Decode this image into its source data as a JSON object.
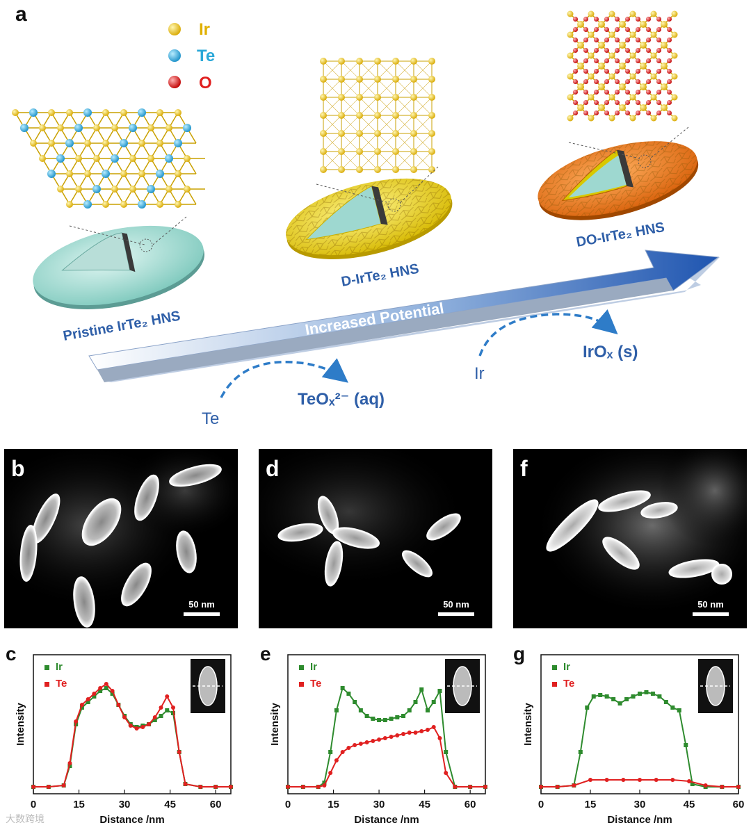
{
  "panel_a": {
    "letter": "a",
    "legend": [
      {
        "label": "Ir",
        "color": "#f0c419"
      },
      {
        "label": "Te",
        "color": "#2aa8d8"
      },
      {
        "label": "O",
        "color": "#e02020"
      }
    ],
    "stages": {
      "pristine": "Pristine IrTe₂ HNS",
      "d": "D-IrTe₂ HNS",
      "do": "DO-IrTe₂ HNS"
    },
    "arrow_label": "Increased Potential",
    "reaction_te_from": "Te",
    "reaction_te_to": "TeOₓ²⁻ (aq)",
    "reaction_ir_from": "Ir",
    "reaction_ir_to": "IrOₓ (s)",
    "label_color": "#2f5fa8",
    "arrow_color": "#2b5cb0"
  },
  "em_panels": [
    {
      "letter": "b",
      "scale": "50 nm"
    },
    {
      "letter": "d",
      "scale": "50 nm"
    },
    {
      "letter": "f",
      "scale": "50 nm"
    }
  ],
  "plots": [
    {
      "letter": "c"
    },
    {
      "letter": "e"
    },
    {
      "letter": "g"
    }
  ],
  "chart_data": [
    {
      "type": "line",
      "panel": "c",
      "xlabel": "Distance /nm",
      "ylabel": "Intensity",
      "xlim": [
        0,
        65
      ],
      "xticks": [
        0,
        15,
        30,
        45,
        60
      ],
      "ylim": [
        0,
        1
      ],
      "series": [
        {
          "name": "Ir",
          "color": "#2e8b2e",
          "x": [
            0,
            5,
            10,
            12,
            14,
            16,
            18,
            20,
            22,
            24,
            26,
            28,
            30,
            32,
            34,
            36,
            38,
            40,
            42,
            44,
            46,
            48,
            50,
            55,
            60,
            65
          ],
          "y": [
            0.05,
            0.05,
            0.06,
            0.2,
            0.5,
            0.62,
            0.66,
            0.7,
            0.74,
            0.76,
            0.72,
            0.64,
            0.56,
            0.5,
            0.48,
            0.49,
            0.5,
            0.53,
            0.56,
            0.6,
            0.58,
            0.3,
            0.07,
            0.05,
            0.05,
            0.05
          ]
        },
        {
          "name": "Te",
          "color": "#e02020",
          "x": [
            0,
            5,
            10,
            12,
            14,
            16,
            18,
            20,
            22,
            24,
            26,
            28,
            30,
            32,
            34,
            36,
            38,
            40,
            42,
            44,
            46,
            48,
            50,
            55,
            60,
            65
          ],
          "y": [
            0.05,
            0.05,
            0.06,
            0.22,
            0.52,
            0.64,
            0.68,
            0.72,
            0.76,
            0.79,
            0.74,
            0.64,
            0.55,
            0.49,
            0.47,
            0.48,
            0.5,
            0.55,
            0.62,
            0.7,
            0.62,
            0.3,
            0.07,
            0.05,
            0.05,
            0.05
          ]
        }
      ]
    },
    {
      "type": "line",
      "panel": "e",
      "xlabel": "Distance /nm",
      "ylabel": "Intensity",
      "xlim": [
        0,
        65
      ],
      "xticks": [
        0,
        15,
        30,
        45,
        60
      ],
      "ylim": [
        0,
        1
      ],
      "series": [
        {
          "name": "Ir",
          "color": "#2e8b2e",
          "x": [
            0,
            5,
            10,
            12,
            14,
            16,
            18,
            20,
            22,
            24,
            26,
            28,
            30,
            32,
            34,
            36,
            38,
            40,
            42,
            44,
            46,
            48,
            50,
            52,
            55,
            60,
            65
          ],
          "y": [
            0.05,
            0.05,
            0.05,
            0.08,
            0.3,
            0.6,
            0.76,
            0.72,
            0.66,
            0.6,
            0.56,
            0.54,
            0.53,
            0.53,
            0.54,
            0.55,
            0.56,
            0.6,
            0.66,
            0.75,
            0.6,
            0.66,
            0.74,
            0.3,
            0.05,
            0.05,
            0.05
          ]
        },
        {
          "name": "Te",
          "color": "#e02020",
          "x": [
            0,
            5,
            10,
            12,
            14,
            16,
            18,
            20,
            22,
            24,
            26,
            28,
            30,
            32,
            34,
            36,
            38,
            40,
            42,
            44,
            46,
            48,
            50,
            52,
            55,
            60,
            65
          ],
          "y": [
            0.05,
            0.05,
            0.05,
            0.06,
            0.15,
            0.24,
            0.3,
            0.33,
            0.35,
            0.36,
            0.37,
            0.38,
            0.39,
            0.4,
            0.41,
            0.42,
            0.43,
            0.44,
            0.44,
            0.45,
            0.46,
            0.48,
            0.4,
            0.15,
            0.05,
            0.05,
            0.05
          ]
        }
      ]
    },
    {
      "type": "line",
      "panel": "g",
      "xlabel": "Distance /nm",
      "ylabel": "Intensity",
      "xlim": [
        0,
        60
      ],
      "xticks": [
        0,
        15,
        30,
        45,
        60
      ],
      "ylim": [
        0,
        1
      ],
      "series": [
        {
          "name": "Ir",
          "color": "#2e8b2e",
          "x": [
            0,
            5,
            10,
            12,
            14,
            16,
            18,
            20,
            22,
            24,
            26,
            28,
            30,
            32,
            34,
            36,
            38,
            40,
            42,
            44,
            46,
            50,
            55,
            60
          ],
          "y": [
            0.05,
            0.05,
            0.06,
            0.3,
            0.62,
            0.7,
            0.71,
            0.7,
            0.68,
            0.65,
            0.68,
            0.7,
            0.72,
            0.73,
            0.72,
            0.7,
            0.66,
            0.62,
            0.6,
            0.35,
            0.07,
            0.05,
            0.05,
            0.05
          ]
        },
        {
          "name": "Te",
          "color": "#e02020",
          "x": [
            0,
            5,
            10,
            15,
            20,
            25,
            30,
            35,
            40,
            45,
            50,
            55,
            60
          ],
          "y": [
            0.05,
            0.05,
            0.06,
            0.1,
            0.1,
            0.1,
            0.1,
            0.1,
            0.1,
            0.09,
            0.06,
            0.05,
            0.05
          ]
        }
      ]
    }
  ],
  "watermark": "大数跨境"
}
